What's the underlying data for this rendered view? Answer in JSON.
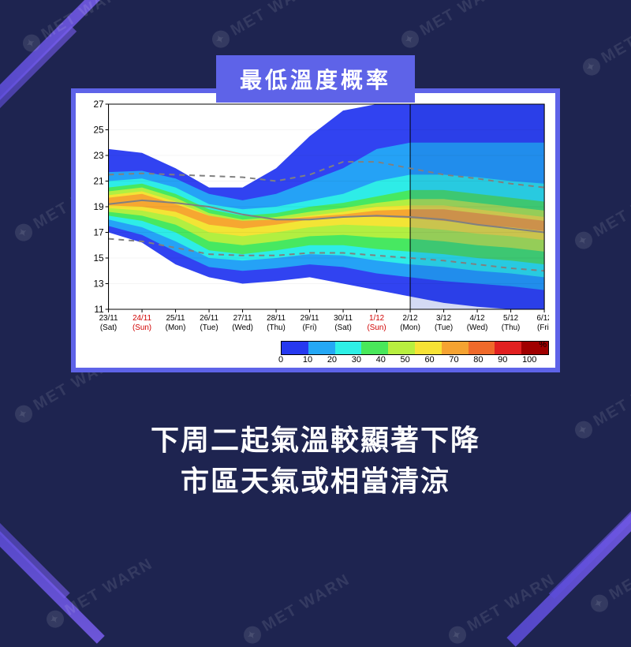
{
  "watermark_text": "MET WARN",
  "title": "最低溫度概率",
  "caption_line1": "下周二起氣溫較顯著下降",
  "caption_line2": "市區天氣或相當清涼",
  "chart": {
    "type": "probability-heatmap",
    "background_color": "#ffffff",
    "frame_color": "#5e63e8",
    "ylim": [
      11,
      27
    ],
    "yticks": [
      11,
      13,
      15,
      17,
      19,
      21,
      23,
      25,
      27
    ],
    "x_dates": [
      {
        "top": "23/11",
        "bottom": "(Sat)",
        "red": false
      },
      {
        "top": "24/11",
        "bottom": "(Sun)",
        "red": true
      },
      {
        "top": "25/11",
        "bottom": "(Mon)",
        "red": false
      },
      {
        "top": "26/11",
        "bottom": "(Tue)",
        "red": false
      },
      {
        "top": "27/11",
        "bottom": "(Wed)",
        "red": false
      },
      {
        "top": "28/11",
        "bottom": "(Thu)",
        "red": false
      },
      {
        "top": "29/11",
        "bottom": "(Fri)",
        "red": false
      },
      {
        "top": "30/11",
        "bottom": "(Sat)",
        "red": false
      },
      {
        "top": "1/12",
        "bottom": "(Sun)",
        "red": true
      },
      {
        "top": "2/12",
        "bottom": "(Mon)",
        "red": false
      },
      {
        "top": "3/12",
        "bottom": "(Tue)",
        "red": false
      },
      {
        "top": "4/12",
        "bottom": "(Wed)",
        "red": false
      },
      {
        "top": "5/12",
        "bottom": "(Thu)",
        "red": false
      },
      {
        "top": "6/12",
        "bottom": "(Fri)",
        "red": false
      }
    ],
    "vertical_divider_after_index": 9,
    "median_line": [
      19.2,
      19.5,
      19.3,
      19.0,
      18.4,
      18.0,
      18.0,
      18.2,
      18.3,
      18.2,
      18.0,
      17.6,
      17.3,
      17.0
    ],
    "upper_dashed": [
      21.5,
      21.6,
      21.5,
      21.4,
      21.3,
      21.0,
      21.5,
      22.5,
      22.5,
      22.0,
      21.5,
      21.2,
      20.8,
      20.5
    ],
    "lower_dashed": [
      16.5,
      16.3,
      15.8,
      15.3,
      15.2,
      15.2,
      15.4,
      15.4,
      15.2,
      15.0,
      14.8,
      14.5,
      14.2,
      14.0
    ],
    "contours": [
      {
        "level": 10,
        "color": "#2639f0",
        "upper": [
          23.5,
          23.2,
          22.0,
          20.5,
          20.5,
          22.0,
          24.5,
          26.5,
          27.0,
          27.0,
          27.0,
          27.0,
          27.0,
          27.0
        ],
        "lower": [
          17.0,
          16.2,
          14.5,
          13.5,
          13.0,
          13.2,
          13.5,
          13.0,
          12.5,
          12.0,
          11.5,
          11.2,
          11.0,
          11.0
        ]
      },
      {
        "level": 20,
        "color": "#25a8f5",
        "upper": [
          21.7,
          21.8,
          21.2,
          20.0,
          19.5,
          20.0,
          21.0,
          22.0,
          23.5,
          24.0,
          24.0,
          24.0,
          24.0,
          24.0
        ],
        "lower": [
          17.5,
          16.8,
          15.5,
          14.3,
          14.0,
          14.2,
          14.5,
          14.3,
          13.8,
          13.5,
          13.2,
          13.0,
          12.8,
          12.5
        ]
      },
      {
        "level": 30,
        "color": "#2ef0e6",
        "upper": [
          21.0,
          21.2,
          20.5,
          19.2,
          18.8,
          19.0,
          19.5,
          20.0,
          21.0,
          21.5,
          21.5,
          21.3,
          21.0,
          20.8
        ],
        "lower": [
          18.0,
          17.4,
          16.3,
          15.0,
          14.8,
          15.0,
          15.3,
          15.2,
          14.8,
          14.5,
          14.3,
          14.0,
          13.8,
          13.5
        ]
      },
      {
        "level": 40,
        "color": "#49e85a",
        "upper": [
          20.5,
          20.8,
          20.0,
          18.8,
          18.3,
          18.5,
          19.0,
          19.3,
          19.8,
          20.3,
          20.3,
          20.0,
          19.7,
          19.4
        ],
        "lower": [
          18.3,
          17.9,
          17.0,
          15.6,
          15.3,
          15.6,
          16.0,
          16.0,
          15.7,
          15.5,
          15.3,
          15.0,
          14.8,
          14.5
        ]
      },
      {
        "level": 50,
        "color": "#b8ef3f",
        "upper": [
          20.2,
          20.5,
          19.7,
          18.5,
          18.0,
          18.2,
          18.6,
          18.9,
          19.3,
          19.6,
          19.6,
          19.3,
          19.0,
          18.7
        ],
        "lower": [
          18.6,
          18.3,
          17.6,
          16.3,
          16.0,
          16.3,
          16.7,
          16.8,
          16.6,
          16.5,
          16.3,
          16.0,
          15.8,
          15.5
        ]
      },
      {
        "level": 60,
        "color": "#f7e335",
        "upper": [
          19.9,
          20.2,
          19.4,
          18.3,
          17.8,
          18.0,
          18.3,
          18.6,
          19.0,
          19.1,
          19.1,
          18.8,
          18.5,
          18.2
        ],
        "lower": [
          18.9,
          18.7,
          18.2,
          17.0,
          16.7,
          17.0,
          17.4,
          17.6,
          17.5,
          17.4,
          17.2,
          16.9,
          16.7,
          16.4
        ]
      },
      {
        "level": 70,
        "color": "#f5a331",
        "upper": [
          19.7,
          20.0,
          19.2,
          18.3,
          17.9,
          18.0,
          18.2,
          18.4,
          18.7,
          18.8,
          18.8,
          18.5,
          18.2,
          17.9
        ],
        "lower": [
          19.1,
          19.0,
          18.6,
          17.6,
          17.3,
          17.6,
          18.0,
          18.2,
          18.2,
          18.1,
          17.9,
          17.6,
          17.4,
          17.1
        ]
      }
    ],
    "line_colors": {
      "median": "#808080",
      "dashed": "#808080"
    },
    "line_widths": {
      "median": 2,
      "dashed": 2
    }
  },
  "legend": {
    "unit": "%",
    "ticks": [
      0,
      10,
      20,
      30,
      40,
      50,
      60,
      70,
      80,
      90,
      100
    ],
    "colors": [
      "#2639f0",
      "#25a8f5",
      "#2ef0e6",
      "#49e85a",
      "#b8ef3f",
      "#f7e335",
      "#f5a331",
      "#f06a2a",
      "#e22020",
      "#a00000"
    ]
  },
  "colors": {
    "page_bg": "#1e2450",
    "accent": "#5e63e8",
    "stripe": "#6a55e8",
    "text": "#ffffff"
  }
}
